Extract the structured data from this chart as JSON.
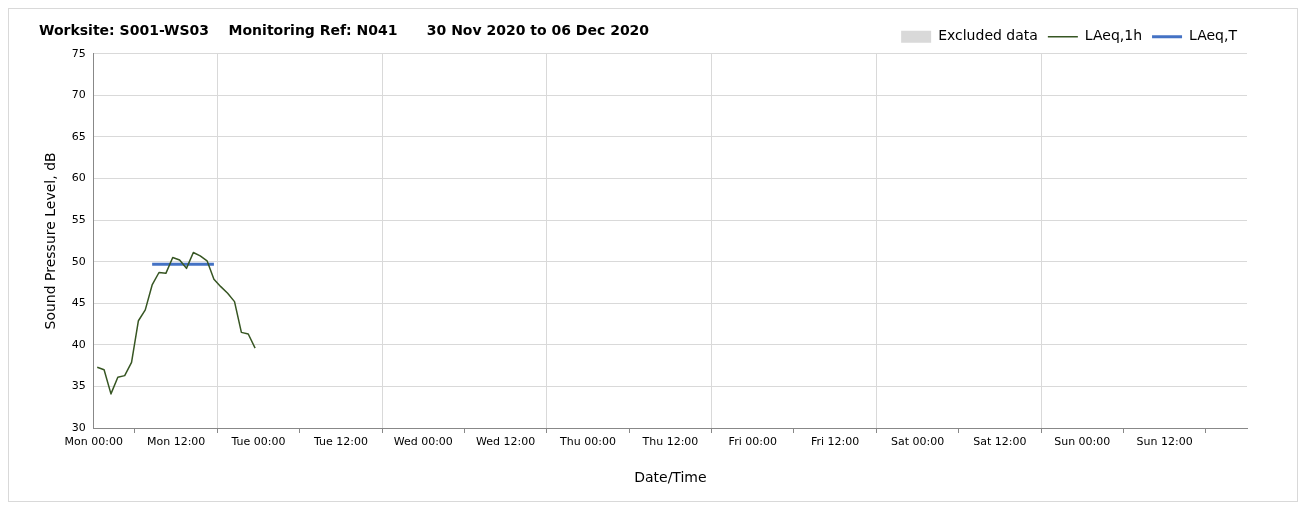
{
  "chart_data": {
    "type": "line",
    "title": "Worksite: S001-WS03    Monitoring Ref: N041      30 Nov 2020 to 06 Dec 2020",
    "xlabel": "Date/Time",
    "ylabel": "Sound Pressure Level, dB",
    "xlim": [
      "2020-11-30T00:00",
      "2020-12-07T00:00"
    ],
    "xticks": [
      {
        "value": "2020-11-30T00:00",
        "label": "Mon 00:00"
      },
      {
        "value": "2020-11-30T12:00",
        "label": "Mon 12:00"
      },
      {
        "value": "2020-12-01T00:00",
        "label": "Tue 00:00"
      },
      {
        "value": "2020-12-01T12:00",
        "label": "Tue 12:00"
      },
      {
        "value": "2020-12-02T00:00",
        "label": "Wed 00:00"
      },
      {
        "value": "2020-12-02T12:00",
        "label": "Wed 12:00"
      },
      {
        "value": "2020-12-03T00:00",
        "label": "Thu 00:00"
      },
      {
        "value": "2020-12-03T12:00",
        "label": "Thu 12:00"
      },
      {
        "value": "2020-12-04T00:00",
        "label": "Fri 00:00"
      },
      {
        "value": "2020-12-04T12:00",
        "label": "Fri 12:00"
      },
      {
        "value": "2020-12-05T00:00",
        "label": "Sat 00:00"
      },
      {
        "value": "2020-12-05T12:00",
        "label": "Sat 12:00"
      },
      {
        "value": "2020-12-06T00:00",
        "label": "Sun 00:00"
      },
      {
        "value": "2020-12-06T12:00",
        "label": "Sun 12:00"
      }
    ],
    "ylim": [
      30,
      75
    ],
    "yticks": [
      30,
      35,
      40,
      45,
      50,
      55,
      60,
      65,
      70,
      75
    ],
    "grid": true,
    "legend": "top right",
    "marker": "none",
    "line_style": "solid",
    "series": [
      {
        "name": "Excluded data",
        "type": "bar",
        "color": "#d9d9d9"
      },
      {
        "name": "LAeq,1h",
        "color": "#375623",
        "x": [
          "2020-11-30T00:30",
          "2020-11-30T01:30",
          "2020-11-30T02:30",
          "2020-11-30T03:30",
          "2020-11-30T04:30",
          "2020-11-30T05:30",
          "2020-11-30T06:30",
          "2020-11-30T07:30",
          "2020-11-30T08:30",
          "2020-11-30T09:30",
          "2020-11-30T10:30",
          "2020-11-30T11:30",
          "2020-11-30T12:30",
          "2020-11-30T13:30",
          "2020-11-30T14:30",
          "2020-11-30T15:30",
          "2020-11-30T16:30",
          "2020-11-30T17:30",
          "2020-11-30T18:30",
          "2020-11-30T19:30",
          "2020-11-30T20:30",
          "2020-11-30T21:30",
          "2020-11-30T22:30",
          "2020-11-30T23:30"
        ],
        "values": [
          37.3,
          37.0,
          34.1,
          36.1,
          36.3,
          37.9,
          42.9,
          44.2,
          47.2,
          48.7,
          48.6,
          50.5,
          50.2,
          49.2,
          51.1,
          50.7,
          50.1,
          47.9,
          47.0,
          46.2,
          45.2,
          41.5,
          41.3,
          39.6
        ]
      },
      {
        "name": "LAeq,T",
        "color": "#4472c4",
        "x": [
          "2020-11-30T08:30",
          "2020-11-30T17:30"
        ],
        "values": [
          49.7,
          49.7
        ]
      }
    ]
  }
}
